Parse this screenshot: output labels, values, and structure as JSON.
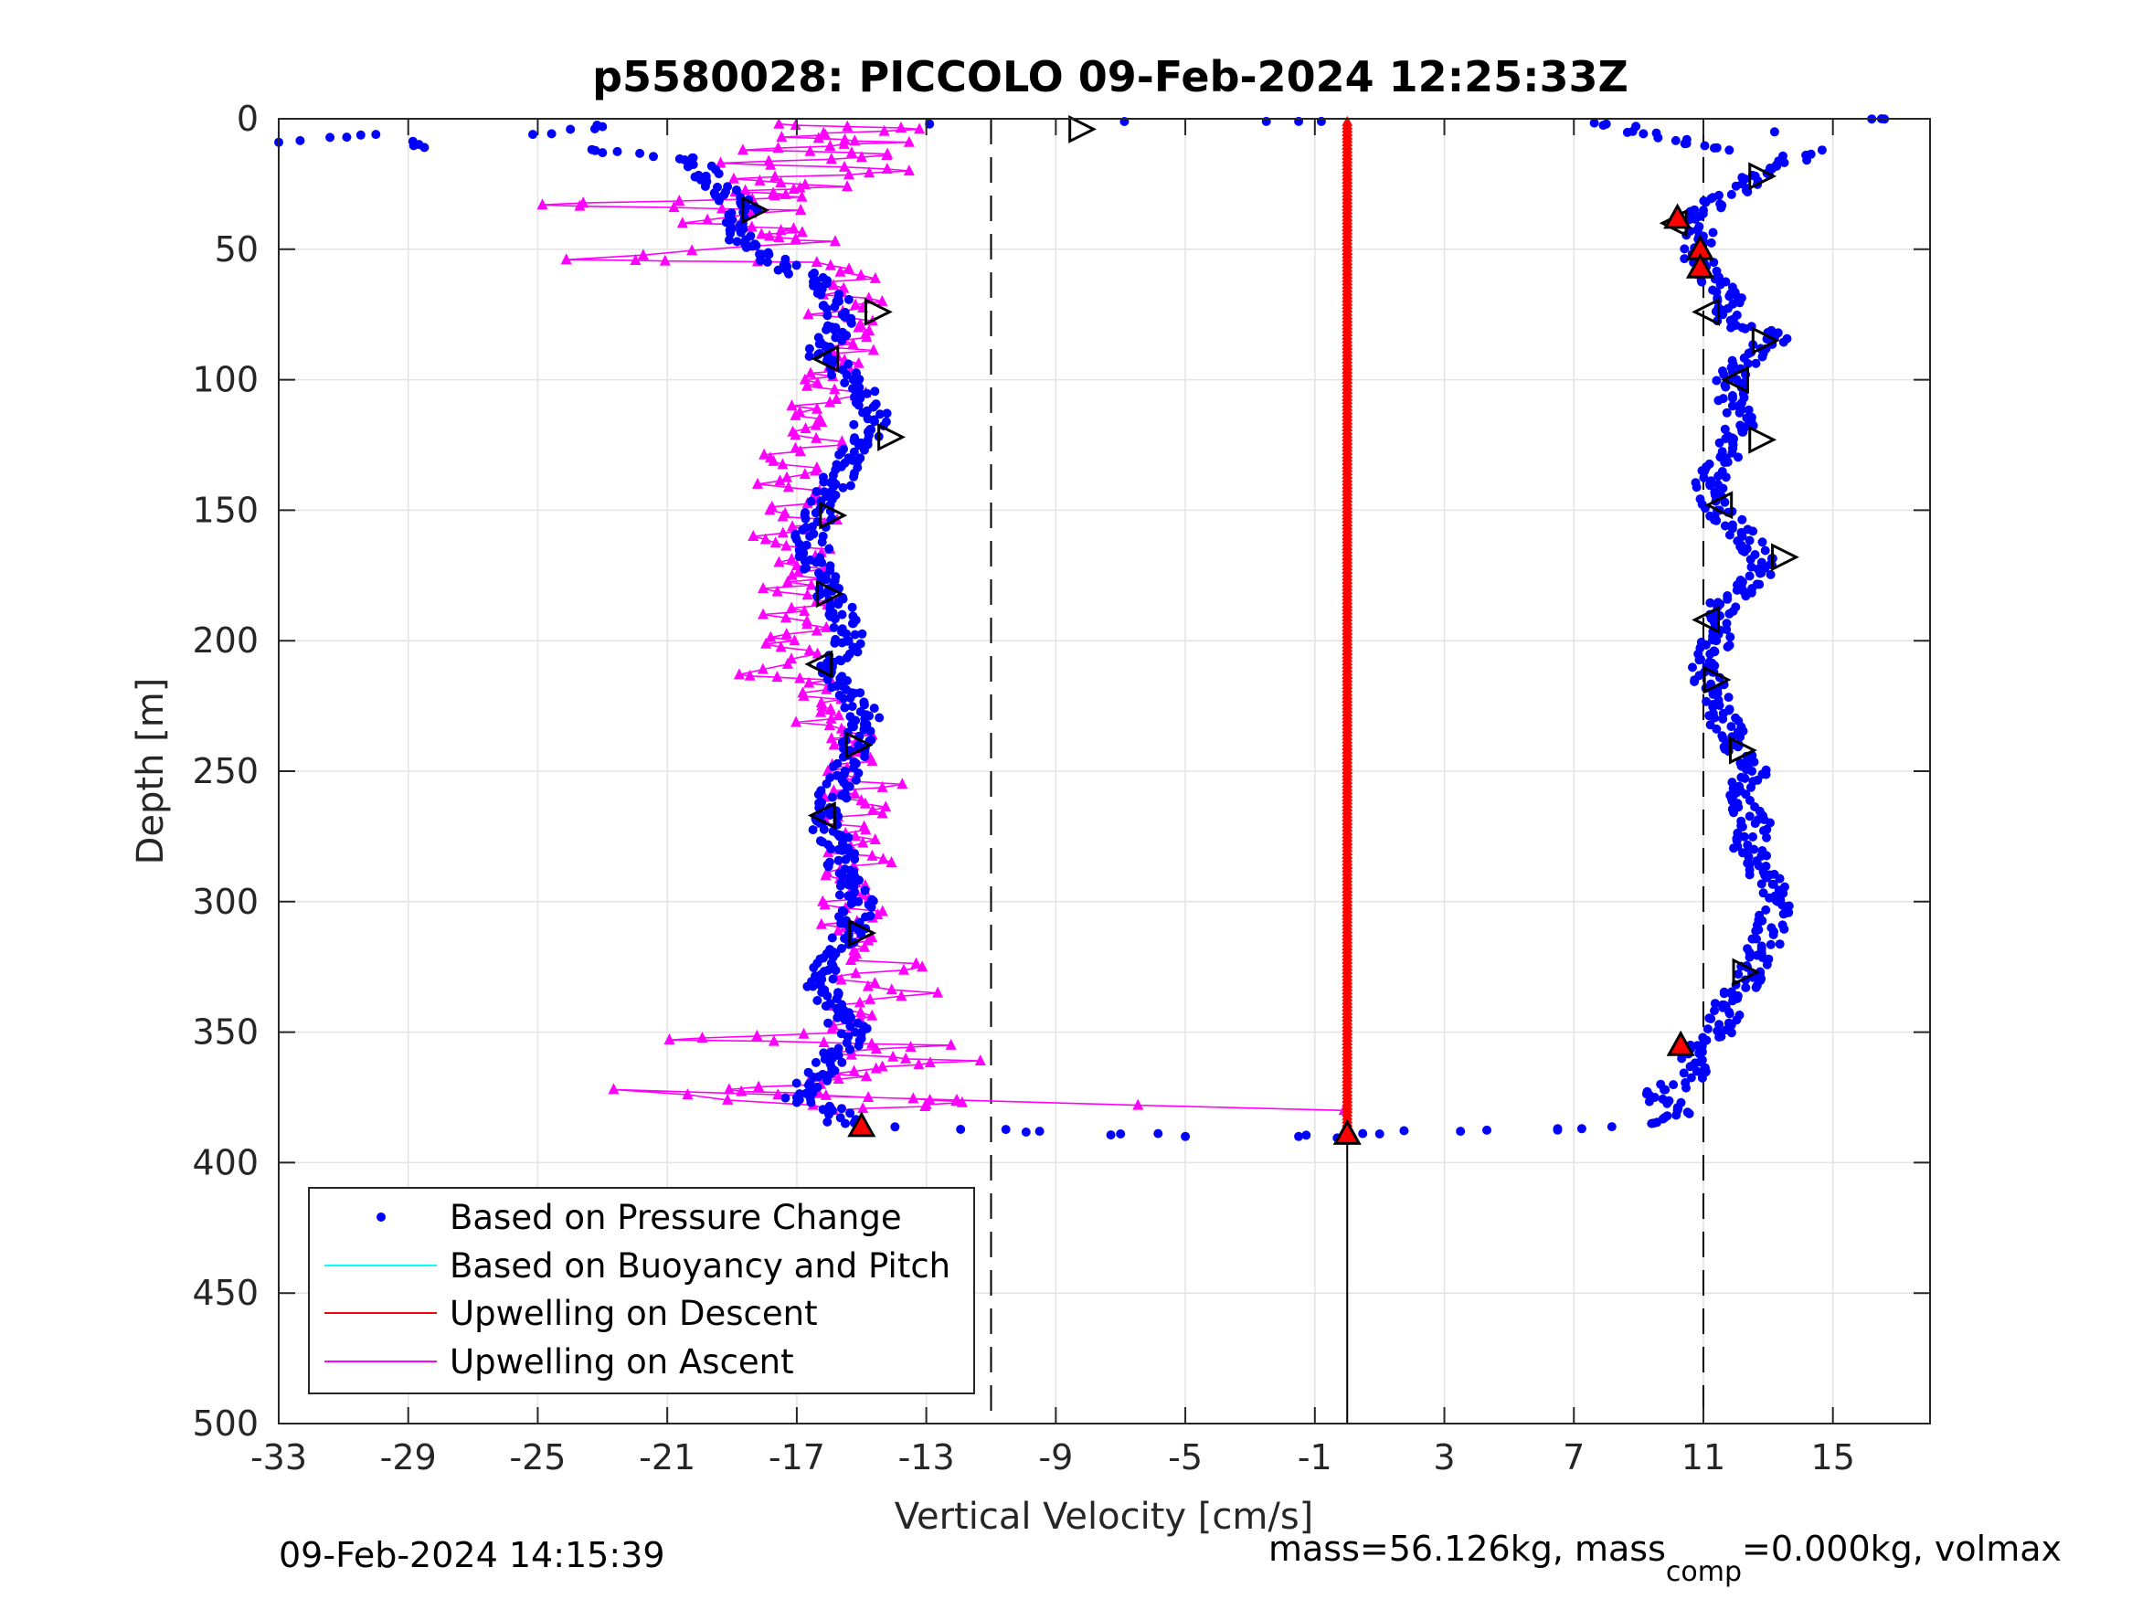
{
  "chart_data": {
    "type": "scatter",
    "title": "p5580028: PICCOLO 09-Feb-2024 12:25:33Z",
    "xlabel": "Vertical Velocity [cm/s]",
    "ylabel": "Depth [m]",
    "xlim": [
      -33,
      18
    ],
    "ylim": [
      0,
      500
    ],
    "y_reversed": true,
    "grid": true,
    "xticks": [
      "-33",
      "-29",
      "-25",
      "-21",
      "-17",
      "-13",
      "-9",
      "-5",
      "-1",
      "3",
      "7",
      "11",
      "15"
    ],
    "yticks": [
      "0",
      "50",
      "100",
      "150",
      "200",
      "250",
      "300",
      "350",
      "400",
      "450",
      "500"
    ],
    "xtick_values": [
      -33,
      -29,
      -25,
      -21,
      -17,
      -13,
      -9,
      -5,
      -1,
      3,
      7,
      11,
      15
    ],
    "ytick_values": [
      0,
      50,
      100,
      150,
      200,
      250,
      300,
      350,
      400,
      450,
      500
    ],
    "reference_lines": [
      {
        "x": -11,
        "style": "dashed"
      },
      {
        "x": 11,
        "style": "dashed"
      },
      {
        "x": 0,
        "style": "solid",
        "y_from": 390,
        "y_to": 500
      }
    ],
    "legend": {
      "placement": "bottom-left",
      "entries": [
        {
          "label": "Based on Pressure Change",
          "color": "#0000ff",
          "marker": "dot"
        },
        {
          "label": "Based on Buoyancy and Pitch",
          "color": "#00ffff",
          "marker": "line"
        },
        {
          "label": "Upwelling on Descent",
          "color": "#ff0000",
          "marker": "line"
        },
        {
          "label": "Upwelling on Ascent",
          "color": "#ff00ff",
          "marker": "line"
        }
      ]
    },
    "series": [
      {
        "name": "Based on Pressure Change",
        "color": "#0000ff",
        "descent_profile": [
          [
            -12.9,
            2
          ],
          [
            -2.5,
            1
          ],
          [
            -1.5,
            1
          ],
          [
            -0.8,
            1
          ],
          [
            8,
            2
          ],
          [
            11.8,
            12
          ],
          [
            13.2,
            5
          ],
          [
            16.5,
            0
          ],
          [
            12.6,
            22
          ],
          [
            11,
            35
          ],
          [
            10.2,
            40
          ],
          [
            11,
            45
          ],
          [
            10.8,
            52
          ],
          [
            11,
            58
          ],
          [
            11.8,
            68
          ],
          [
            11.6,
            75
          ],
          [
            12.2,
            80
          ],
          [
            13.2,
            84
          ],
          [
            12.4,
            90
          ],
          [
            11.8,
            100
          ],
          [
            11.9,
            110
          ],
          [
            12.2,
            120
          ],
          [
            11.7,
            130
          ],
          [
            11.2,
            140
          ],
          [
            11.5,
            150
          ],
          [
            12.2,
            160
          ],
          [
            12.8,
            170
          ],
          [
            12.5,
            180
          ],
          [
            11.2,
            190
          ],
          [
            11.4,
            200
          ],
          [
            11.1,
            210
          ],
          [
            11.3,
            220
          ],
          [
            11.6,
            230
          ],
          [
            12.1,
            240
          ],
          [
            12.5,
            250
          ],
          [
            11.9,
            260
          ],
          [
            12.6,
            270
          ],
          [
            12.4,
            280
          ],
          [
            12.9,
            290
          ],
          [
            13.3,
            300
          ],
          [
            13.1,
            310
          ],
          [
            12.8,
            320
          ],
          [
            12.3,
            330
          ],
          [
            11.7,
            340
          ],
          [
            11.5,
            350
          ],
          [
            10.6,
            355
          ],
          [
            10.8,
            365
          ],
          [
            9.5,
            375
          ],
          [
            10.2,
            380
          ],
          [
            9.4,
            385
          ],
          [
            6.5,
            387
          ],
          [
            3.5,
            388
          ],
          [
            1,
            389
          ],
          [
            0,
            390
          ]
        ],
        "ascent_profile": [
          [
            -33,
            9
          ],
          [
            -30,
            6
          ],
          [
            -28.5,
            11
          ],
          [
            -23,
            3
          ],
          [
            -23,
            13
          ],
          [
            -20.2,
            15
          ],
          [
            -19.8,
            22
          ],
          [
            -19.2,
            28
          ],
          [
            -18.6,
            35
          ],
          [
            -19,
            42
          ],
          [
            -18.6,
            48
          ],
          [
            -17.4,
            56
          ],
          [
            -16.4,
            62
          ],
          [
            -15.7,
            70
          ],
          [
            -15.8,
            80
          ],
          [
            -16.3,
            90
          ],
          [
            -15.2,
            100
          ],
          [
            -14.6,
            110
          ],
          [
            -14.8,
            120
          ],
          [
            -15.4,
            130
          ],
          [
            -15.8,
            140
          ],
          [
            -16.3,
            150
          ],
          [
            -16.6,
            160
          ],
          [
            -16.4,
            170
          ],
          [
            -16,
            180
          ],
          [
            -15.6,
            190
          ],
          [
            -15.4,
            200
          ],
          [
            -15.9,
            210
          ],
          [
            -15.3,
            220
          ],
          [
            -14.9,
            230
          ],
          [
            -15.1,
            240
          ],
          [
            -15.5,
            250
          ],
          [
            -15.9,
            260
          ],
          [
            -16.2,
            270
          ],
          [
            -15.7,
            280
          ],
          [
            -15.6,
            290
          ],
          [
            -15.1,
            300
          ],
          [
            -15.3,
            310
          ],
          [
            -15.8,
            320
          ],
          [
            -16.3,
            330
          ],
          [
            -16.1,
            340
          ],
          [
            -15.2,
            350
          ],
          [
            -15.9,
            360
          ],
          [
            -16.6,
            370
          ],
          [
            -17,
            375
          ],
          [
            -15.9,
            380
          ],
          [
            -15.5,
            385
          ],
          [
            -9.5,
            388
          ],
          [
            -7,
            389
          ],
          [
            -5,
            390
          ],
          [
            -1.5,
            390
          ],
          [
            0,
            391
          ]
        ]
      },
      {
        "name": "Based on Buoyancy and Pitch",
        "color": "#00ffff",
        "points": []
      },
      {
        "name": "Upwelling on Descent",
        "color": "#ff0000",
        "constant_x": 0,
        "y_range": [
          1,
          389
        ]
      },
      {
        "name": "Upwelling on Ascent",
        "color": "#ff00ff",
        "profile": [
          [
            -17.8,
            2
          ],
          [
            -13.5,
            4
          ],
          [
            -17.8,
            7
          ],
          [
            -14,
            9
          ],
          [
            -18.2,
            12
          ],
          [
            -13.6,
            14
          ],
          [
            -19,
            17
          ],
          [
            -13.4,
            20
          ],
          [
            -18.4,
            23
          ],
          [
            -16.2,
            26
          ],
          [
            -18.8,
            28
          ],
          [
            -16.9,
            30
          ],
          [
            -25,
            33
          ],
          [
            -17.2,
            35
          ],
          [
            -20.4,
            40
          ],
          [
            -16.7,
            42
          ],
          [
            -17.5,
            45
          ],
          [
            -16.3,
            47
          ],
          [
            -24.3,
            54
          ],
          [
            -16.3,
            55
          ],
          [
            -15,
            60
          ],
          [
            -16.2,
            65
          ],
          [
            -14.6,
            70
          ],
          [
            -16.3,
            75
          ],
          [
            -14.6,
            80
          ],
          [
            -15.7,
            85
          ],
          [
            -15.2,
            90
          ],
          [
            -15.7,
            95
          ],
          [
            -16.6,
            100
          ],
          [
            -15.2,
            105
          ],
          [
            -17.3,
            110
          ],
          [
            -15.9,
            115
          ],
          [
            -17.4,
            120
          ],
          [
            -15.9,
            125
          ],
          [
            -18.1,
            130
          ],
          [
            -16.2,
            135
          ],
          [
            -17.6,
            140
          ],
          [
            -16.5,
            145
          ],
          [
            -17.8,
            150
          ],
          [
            -15.9,
            155
          ],
          [
            -17.7,
            160
          ],
          [
            -16.4,
            165
          ],
          [
            -17.1,
            170
          ],
          [
            -16.5,
            175
          ],
          [
            -17.6,
            180
          ],
          [
            -16,
            185
          ],
          [
            -17.7,
            190
          ],
          [
            -16.4,
            195
          ],
          [
            -17.5,
            200
          ],
          [
            -16.3,
            205
          ],
          [
            -18.9,
            213
          ],
          [
            -16.1,
            215
          ],
          [
            -17,
            220
          ],
          [
            -15.5,
            225
          ],
          [
            -16.7,
            230
          ],
          [
            -15,
            235
          ],
          [
            -16.2,
            240
          ],
          [
            -15,
            245
          ],
          [
            -16.2,
            250
          ],
          [
            -14.4,
            255
          ],
          [
            -15.8,
            260
          ],
          [
            -14.7,
            265
          ],
          [
            -15.8,
            270
          ],
          [
            -14.9,
            275
          ],
          [
            -15.9,
            280
          ],
          [
            -14.5,
            285
          ],
          [
            -15.7,
            290
          ],
          [
            -14.6,
            295
          ],
          [
            -15.7,
            300
          ],
          [
            -14.5,
            305
          ],
          [
            -16,
            310
          ],
          [
            -14.5,
            315
          ],
          [
            -15.6,
            320
          ],
          [
            -13.6,
            325
          ],
          [
            -15.9,
            330
          ],
          [
            -13.4,
            335
          ],
          [
            -16,
            340
          ],
          [
            -14.7,
            345
          ],
          [
            -15.6,
            350
          ],
          [
            -20.3,
            353
          ],
          [
            -13,
            355
          ],
          [
            -16.8,
            358
          ],
          [
            -11.8,
            361
          ],
          [
            -15.2,
            364
          ],
          [
            -15.1,
            368
          ],
          [
            -19,
            372
          ],
          [
            -15,
            375
          ],
          [
            -11.7,
            377
          ],
          [
            -15.1,
            380
          ],
          [
            -22.9,
            372
          ],
          [
            -0.1,
            380
          ]
        ]
      }
    ],
    "markers": {
      "triangles_right": [
        [
          -8.2,
          4
        ],
        [
          12.8,
          22
        ],
        [
          -18.3,
          35
        ],
        [
          -14.5,
          74
        ],
        [
          12.9,
          85
        ],
        [
          -14.1,
          122
        ],
        [
          12.8,
          123
        ],
        [
          -15.9,
          152
        ],
        [
          13.5,
          168
        ],
        [
          -16,
          182
        ],
        [
          11.4,
          215
        ],
        [
          -15.1,
          240
        ],
        [
          12.2,
          242
        ],
        [
          -15,
          312
        ],
        [
          12.3,
          327
        ]
      ],
      "triangles_left": [
        [
          10.1,
          40
        ],
        [
          -16.1,
          92
        ],
        [
          12,
          100
        ],
        [
          11.5,
          148
        ],
        [
          11.1,
          192
        ],
        [
          -16.3,
          209
        ],
        [
          -16.2,
          267
        ],
        [
          11.1,
          74
        ]
      ],
      "triangles_red": [
        [
          10.2,
          38
        ],
        [
          10.9,
          50
        ],
        [
          10.9,
          57
        ],
        [
          10.3,
          355
        ],
        [
          -15,
          386
        ],
        [
          0,
          389
        ]
      ]
    }
  },
  "footer": {
    "timestamp": "09-Feb-2024 14:15:39",
    "mass_text_1": "mass=56.126kg, mass",
    "mass_sub": "comp",
    "mass_text_2": "=0.000kg, volmax"
  }
}
